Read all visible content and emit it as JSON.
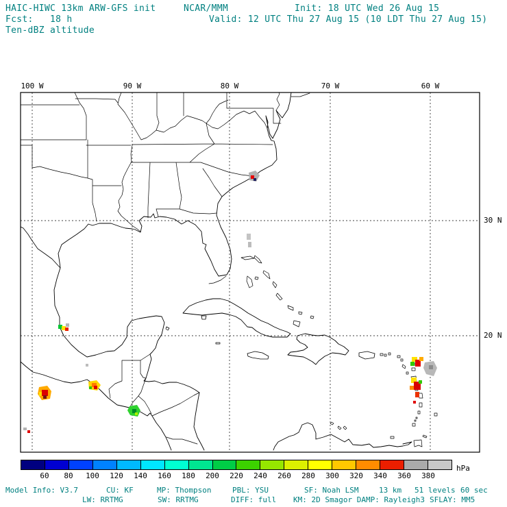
{
  "header": {
    "model": "HAIC-HIWC 13km ARW-GFS init",
    "org": "NCAR/MMM",
    "init": "Init: 18 UTC Wed 26 Aug 15",
    "fcst": "Fcst:   18 h",
    "valid": "Valid: 12 UTC Thu 27 Aug 15 (10 LDT Thu 27 Aug 15)",
    "field": "Ten-dBZ altitude"
  },
  "map": {
    "lon_ticks": [
      {
        "label": "100 W"
      },
      {
        "label": "90 W"
      },
      {
        "label": "80 W"
      },
      {
        "label": "70 W"
      },
      {
        "label": "60 W"
      }
    ],
    "lat_ticks": [
      {
        "label": "30 N"
      },
      {
        "label": "20 N"
      }
    ]
  },
  "colorbar": {
    "unit": "hPa",
    "tick_labels": [
      "60",
      "80",
      "100",
      "120",
      "140",
      "160",
      "180",
      "200",
      "220",
      "240",
      "260",
      "280",
      "300",
      "320",
      "340",
      "360",
      "380"
    ],
    "colors": [
      "#000080",
      "#0000d2",
      "#0041ff",
      "#0082ff",
      "#00b9ff",
      "#00e6ff",
      "#00ffd2",
      "#00e691",
      "#00cd46",
      "#3cd200",
      "#96e600",
      "#dcf000",
      "#ffff00",
      "#ffc800",
      "#ff8c00",
      "#eb1e00",
      "#aaaaaa",
      "#c8c8c8"
    ]
  },
  "footer": {
    "line1": [
      "Model Info: V3.7",
      "CU: KF",
      "MP: Thompson",
      "PBL: YSU",
      "SF: Noah LSM",
      "13 km",
      "51 levels",
      "60 sec"
    ],
    "line2": [
      "LW: RRTMG",
      "SW: RRTMG",
      "DIFF: full",
      "KM: 2D Smagor DAMP: Rayleigh3",
      "SFLAY: MM5"
    ]
  },
  "colors": {
    "text_teal": "#008080",
    "map_line": "#000000"
  }
}
